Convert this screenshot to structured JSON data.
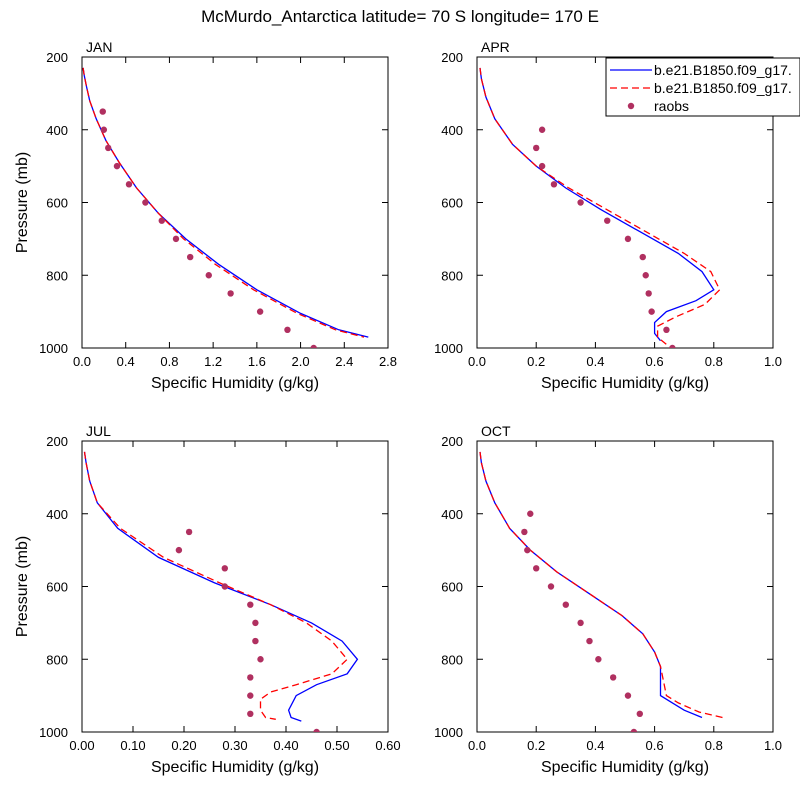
{
  "title": "McMurdo_Antarctica  latitude= 70 S longitude= 170 E",
  "colors": {
    "series1": "#0000ff",
    "series2": "#ff0000",
    "raobs": "#b03060"
  },
  "legend": {
    "placement": "top-right of APR panel",
    "entries": [
      "b.e21.B1850.f09_g17.",
      "b.e21.B1850.f09_g17.",
      "raobs"
    ]
  },
  "chart_data": [
    {
      "type": "line",
      "panel": "JAN",
      "title": "JAN",
      "xlabel": "Specific Humidity (g/kg)",
      "ylabel": "Pressure (mb)",
      "xlim": [
        0,
        2.8
      ],
      "ylim": [
        1000,
        200
      ],
      "xticks": [
        "0.0",
        "0.4",
        "0.8",
        "1.2",
        "1.6",
        "2.0",
        "2.4",
        "2.8"
      ],
      "yticks": [
        "200",
        "400",
        "600",
        "800",
        "1000"
      ],
      "series": [
        {
          "name": "b.e21.B1850.f09_g17.",
          "style": "solid",
          "points": [
            [
              0.01,
              230
            ],
            [
              0.02,
              250
            ],
            [
              0.04,
              280
            ],
            [
              0.07,
              320
            ],
            [
              0.13,
              370
            ],
            [
              0.22,
              430
            ],
            [
              0.34,
              490
            ],
            [
              0.5,
              560
            ],
            [
              0.7,
              630
            ],
            [
              0.95,
              700
            ],
            [
              1.25,
              770
            ],
            [
              1.6,
              840
            ],
            [
              2.0,
              905
            ],
            [
              2.35,
              950
            ],
            [
              2.62,
              970
            ]
          ]
        },
        {
          "name": "b.e21.B1850.f09_g17.",
          "style": "dashed",
          "points": [
            [
              0.01,
              230
            ],
            [
              0.02,
              250
            ],
            [
              0.04,
              280
            ],
            [
              0.07,
              320
            ],
            [
              0.13,
              370
            ],
            [
              0.22,
              430
            ],
            [
              0.34,
              490
            ],
            [
              0.5,
              560
            ],
            [
              0.7,
              630
            ],
            [
              0.93,
              700
            ],
            [
              1.22,
              770
            ],
            [
              1.57,
              840
            ],
            [
              1.97,
              905
            ],
            [
              2.32,
              950
            ],
            [
              2.58,
              970
            ]
          ]
        },
        {
          "name": "raobs",
          "style": "markers",
          "points": [
            [
              0.19,
              350
            ],
            [
              0.2,
              400
            ],
            [
              0.24,
              450
            ],
            [
              0.32,
              500
            ],
            [
              0.43,
              550
            ],
            [
              0.58,
              600
            ],
            [
              0.73,
              650
            ],
            [
              0.86,
              700
            ],
            [
              0.99,
              750
            ],
            [
              1.16,
              800
            ],
            [
              1.36,
              850
            ],
            [
              1.63,
              900
            ],
            [
              1.88,
              950
            ],
            [
              2.12,
              1000
            ]
          ]
        }
      ]
    },
    {
      "type": "line",
      "panel": "APR",
      "title": "APR",
      "xlabel": "Specific Humidity (g/kg)",
      "ylabel": "",
      "xlim": [
        0,
        1.0
      ],
      "ylim": [
        1000,
        200
      ],
      "xticks": [
        "0.0",
        "0.2",
        "0.4",
        "0.6",
        "0.8",
        "1.0"
      ],
      "yticks": [
        "200",
        "400",
        "600",
        "800",
        "1000"
      ],
      "series": [
        {
          "name": "b.e21.B1850.f09_g17.",
          "style": "solid",
          "points": [
            [
              0.01,
              230
            ],
            [
              0.015,
              260
            ],
            [
              0.03,
              310
            ],
            [
              0.06,
              370
            ],
            [
              0.12,
              440
            ],
            [
              0.2,
              500
            ],
            [
              0.3,
              560
            ],
            [
              0.42,
              620
            ],
            [
              0.55,
              680
            ],
            [
              0.68,
              740
            ],
            [
              0.76,
              790
            ],
            [
              0.8,
              840
            ],
            [
              0.74,
              870
            ],
            [
              0.64,
              900
            ],
            [
              0.6,
              930
            ],
            [
              0.6,
              960
            ],
            [
              0.62,
              980
            ]
          ]
        },
        {
          "name": "b.e21.B1850.f09_g17.",
          "style": "dashed",
          "points": [
            [
              0.01,
              230
            ],
            [
              0.015,
              260
            ],
            [
              0.03,
              310
            ],
            [
              0.06,
              370
            ],
            [
              0.12,
              440
            ],
            [
              0.2,
              500
            ],
            [
              0.31,
              560
            ],
            [
              0.44,
              620
            ],
            [
              0.57,
              680
            ],
            [
              0.7,
              740
            ],
            [
              0.79,
              790
            ],
            [
              0.82,
              840
            ],
            [
              0.77,
              880
            ],
            [
              0.67,
              915
            ],
            [
              0.61,
              940
            ],
            [
              0.61,
              970
            ],
            [
              0.64,
              990
            ]
          ]
        },
        {
          "name": "raobs",
          "style": "markers",
          "points": [
            [
              0.22,
              400
            ],
            [
              0.2,
              450
            ],
            [
              0.22,
              500
            ],
            [
              0.26,
              550
            ],
            [
              0.35,
              600
            ],
            [
              0.44,
              650
            ],
            [
              0.51,
              700
            ],
            [
              0.56,
              750
            ],
            [
              0.57,
              800
            ],
            [
              0.58,
              850
            ],
            [
              0.59,
              900
            ],
            [
              0.64,
              950
            ],
            [
              0.66,
              1000
            ]
          ]
        }
      ]
    },
    {
      "type": "line",
      "panel": "JUL",
      "title": "JUL",
      "xlabel": "Specific Humidity (g/kg)",
      "ylabel": "Pressure (mb)",
      "xlim": [
        0,
        0.6
      ],
      "ylim": [
        1000,
        200
      ],
      "xticks": [
        "0.00",
        "0.10",
        "0.20",
        "0.30",
        "0.40",
        "0.50",
        "0.60"
      ],
      "yticks": [
        "200",
        "400",
        "600",
        "800",
        "1000"
      ],
      "series": [
        {
          "name": "b.e21.B1850.f09_g17.",
          "style": "solid",
          "points": [
            [
              0.005,
              230
            ],
            [
              0.008,
              260
            ],
            [
              0.015,
              310
            ],
            [
              0.03,
              370
            ],
            [
              0.07,
              440
            ],
            [
              0.15,
              520
            ],
            [
              0.26,
              590
            ],
            [
              0.37,
              650
            ],
            [
              0.45,
              700
            ],
            [
              0.51,
              750
            ],
            [
              0.54,
              800
            ],
            [
              0.52,
              840
            ],
            [
              0.46,
              870
            ],
            [
              0.42,
              900
            ],
            [
              0.405,
              940
            ],
            [
              0.41,
              960
            ],
            [
              0.43,
              970
            ]
          ]
        },
        {
          "name": "b.e21.B1850.f09_g17.",
          "style": "dashed",
          "points": [
            [
              0.005,
              230
            ],
            [
              0.008,
              260
            ],
            [
              0.015,
              310
            ],
            [
              0.03,
              370
            ],
            [
              0.075,
              440
            ],
            [
              0.16,
              520
            ],
            [
              0.27,
              590
            ],
            [
              0.37,
              650
            ],
            [
              0.44,
              700
            ],
            [
              0.49,
              750
            ],
            [
              0.52,
              800
            ],
            [
              0.49,
              840
            ],
            [
              0.42,
              870
            ],
            [
              0.37,
              890
            ],
            [
              0.35,
              910
            ],
            [
              0.35,
              940
            ],
            [
              0.36,
              960
            ],
            [
              0.38,
              965
            ]
          ]
        },
        {
          "name": "raobs",
          "style": "markers",
          "points": [
            [
              0.21,
              450
            ],
            [
              0.19,
              500
            ],
            [
              0.28,
              550
            ],
            [
              0.28,
              600
            ],
            [
              0.33,
              650
            ],
            [
              0.34,
              700
            ],
            [
              0.34,
              750
            ],
            [
              0.35,
              800
            ],
            [
              0.33,
              850
            ],
            [
              0.33,
              900
            ],
            [
              0.33,
              950
            ],
            [
              0.46,
              1000
            ]
          ]
        }
      ]
    },
    {
      "type": "line",
      "panel": "OCT",
      "title": "OCT",
      "xlabel": "Specific Humidity (g/kg)",
      "ylabel": "",
      "xlim": [
        0,
        1.0
      ],
      "ylim": [
        1000,
        200
      ],
      "xticks": [
        "0.0",
        "0.2",
        "0.4",
        "0.6",
        "0.8",
        "1.0"
      ],
      "yticks": [
        "200",
        "400",
        "600",
        "800",
        "1000"
      ],
      "series": [
        {
          "name": "b.e21.B1850.f09_g17.",
          "style": "solid",
          "points": [
            [
              0.01,
              230
            ],
            [
              0.015,
              260
            ],
            [
              0.03,
              310
            ],
            [
              0.06,
              370
            ],
            [
              0.11,
              440
            ],
            [
              0.18,
              500
            ],
            [
              0.27,
              560
            ],
            [
              0.38,
              620
            ],
            [
              0.49,
              680
            ],
            [
              0.56,
              730
            ],
            [
              0.6,
              780
            ],
            [
              0.62,
              820
            ],
            [
              0.62,
              860
            ],
            [
              0.62,
              900
            ],
            [
              0.66,
              920
            ],
            [
              0.7,
              940
            ],
            [
              0.76,
              960
            ]
          ]
        },
        {
          "name": "b.e21.B1850.f09_g17.",
          "style": "dashed",
          "points": [
            [
              0.01,
              230
            ],
            [
              0.015,
              260
            ],
            [
              0.03,
              310
            ],
            [
              0.06,
              370
            ],
            [
              0.11,
              440
            ],
            [
              0.18,
              500
            ],
            [
              0.27,
              560
            ],
            [
              0.38,
              620
            ],
            [
              0.49,
              680
            ],
            [
              0.56,
              730
            ],
            [
              0.6,
              780
            ],
            [
              0.62,
              820
            ],
            [
              0.63,
              860
            ],
            [
              0.64,
              900
            ],
            [
              0.68,
              920
            ],
            [
              0.75,
              945
            ],
            [
              0.83,
              960
            ]
          ]
        },
        {
          "name": "raobs",
          "style": "markers",
          "points": [
            [
              0.18,
              400
            ],
            [
              0.16,
              450
            ],
            [
              0.17,
              500
            ],
            [
              0.2,
              550
            ],
            [
              0.25,
              600
            ],
            [
              0.3,
              650
            ],
            [
              0.35,
              700
            ],
            [
              0.38,
              750
            ],
            [
              0.41,
              800
            ],
            [
              0.46,
              850
            ],
            [
              0.51,
              900
            ],
            [
              0.55,
              950
            ],
            [
              0.53,
              1000
            ]
          ]
        }
      ]
    }
  ]
}
